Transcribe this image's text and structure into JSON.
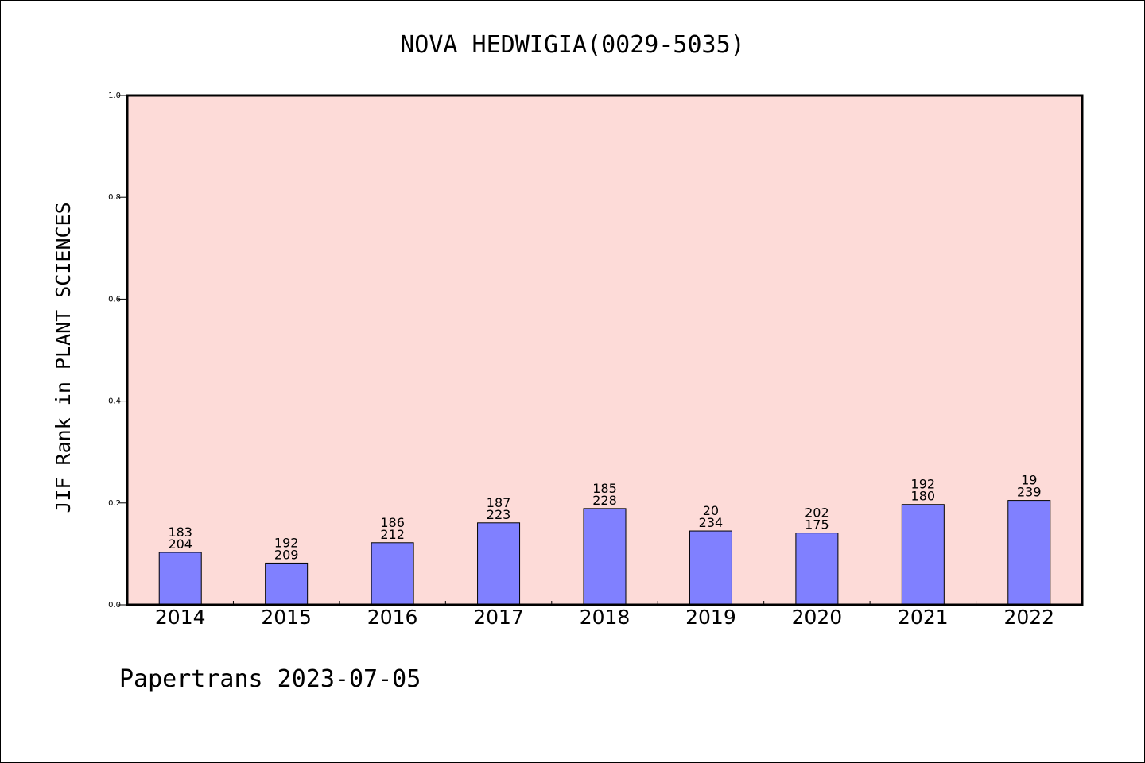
{
  "chart_data": {
    "type": "bar",
    "title": "NOVA HEDWIGIA(0029-5035)",
    "ylabel": "JIF Rank in PLANT SCIENCES",
    "xlabel": "",
    "ylim": [
      0,
      1.0
    ],
    "yticks": [
      "0.0",
      "0.2",
      "0.4",
      "0.6",
      "0.8",
      "1.0"
    ],
    "categories": [
      "2014",
      "2015",
      "2016",
      "2017",
      "2018",
      "2019",
      "2020",
      "2021",
      "2022"
    ],
    "values": [
      0.103,
      0.082,
      0.122,
      0.161,
      0.189,
      0.145,
      0.141,
      0.197,
      0.205
    ],
    "label_top": [
      "183",
      "192",
      "186",
      "187",
      "185",
      "20",
      "202",
      "192",
      "19"
    ],
    "label_bottom": [
      "204",
      "209",
      "212",
      "223",
      "228",
      "234",
      "175",
      "180",
      "239"
    ],
    "grid": false,
    "legend": "none",
    "colors": {
      "plot_background": "#fddbd8",
      "bar_fill": "#8080ff",
      "bar_edge": "#000000",
      "axis": "#000000"
    }
  },
  "footer": {
    "text": "Papertrans 2023-07-05"
  }
}
